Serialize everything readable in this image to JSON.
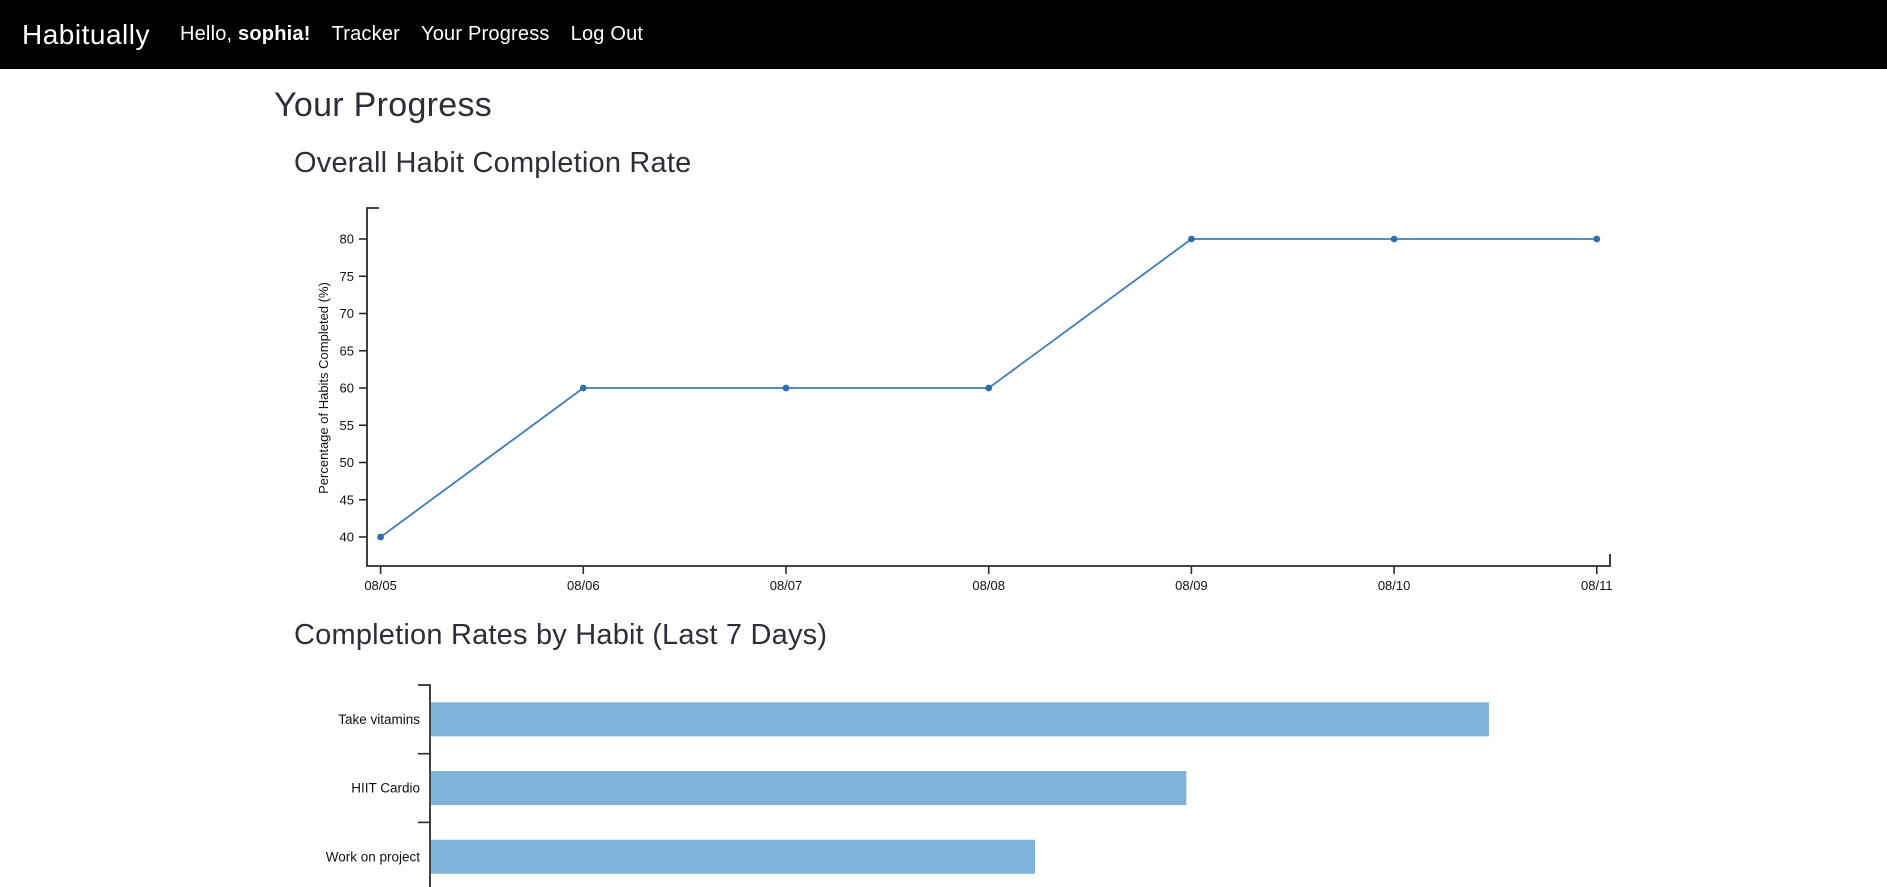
{
  "navbar": {
    "brand": "Habitually",
    "greeting_prefix": "Hello, ",
    "greeting_name": "sophia!",
    "links": [
      {
        "label": "Tracker"
      },
      {
        "label": "Your Progress"
      },
      {
        "label": "Log Out"
      }
    ],
    "background_color": "#000000",
    "text_color": "#ffffff"
  },
  "page": {
    "title": "Your Progress"
  },
  "chart_data": [
    {
      "type": "line",
      "title": "Overall Habit Completion Rate",
      "x": [
        "08/05",
        "08/06",
        "08/07",
        "08/08",
        "08/09",
        "08/10",
        "08/11"
      ],
      "values": [
        40,
        60,
        60,
        60,
        80,
        80,
        80
      ],
      "xlabel": "",
      "ylabel": "Percentage of Habits Completed (%)",
      "yticks": [
        40,
        45,
        50,
        55,
        60,
        65,
        70,
        75,
        80
      ],
      "ylim": [
        36,
        84
      ],
      "grid": false,
      "legend": "none",
      "line_color": "#3e7cb9",
      "marker_color": "#2e6fad",
      "axis_color": "#2b2b2b"
    },
    {
      "type": "bar",
      "orientation": "horizontal",
      "title": "Completion Rates by Habit (Last 7 Days)",
      "categories": [
        "Take vitamins",
        "HIIT Cardio",
        "Work on project"
      ],
      "values": [
        100,
        71.4,
        57.1
      ],
      "xlabel": "",
      "ylabel": "",
      "grid": false,
      "legend": "none",
      "bar_color": "#7fb2d8",
      "axis_color": "#2b2b2b",
      "note_visible_portion": "x-axis cut off at bottom edge of viewport"
    }
  ]
}
